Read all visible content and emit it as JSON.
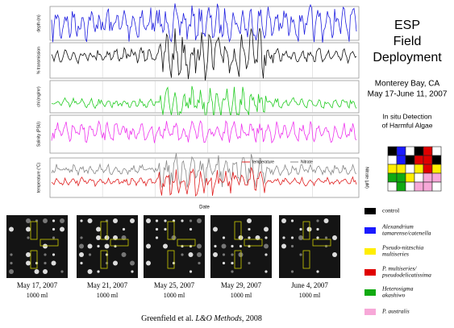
{
  "title": [
    "ESP",
    "Field",
    "Deployment"
  ],
  "location": "Monterey Bay, CA",
  "dates": "May 17-June 11, 2007",
  "subtitle": [
    "In situ Detection",
    "of Harmful Algae"
  ],
  "panels": [
    {
      "ylabel": "depth (m)",
      "color": "#2020e0"
    },
    {
      "ylabel": "% transmission",
      "color": "#111111"
    },
    {
      "ylabel": "chl (mg/m³)",
      "color": "#22cc22"
    },
    {
      "ylabel": "Salinity (PSU)",
      "color": "#ee33ee"
    },
    {
      "ylabel": "temperature (°C)",
      "y2label": "Nitrate (µM)",
      "color": "#e02020",
      "color2": "#888888",
      "legend": [
        "temperature",
        "Nitrate"
      ]
    }
  ],
  "xlabel": "Date",
  "samples": [
    {
      "date": "May 17, 2007",
      "volume": "1000 ml"
    },
    {
      "date": "May 21, 2007",
      "volume": "1000 ml"
    },
    {
      "date": "May 25, 2007",
      "volume": "1000 ml"
    },
    {
      "date": "May 29, 2007",
      "volume": "1000 ml"
    },
    {
      "date": "June 4, 2007",
      "volume": "1000 ml"
    }
  ],
  "legend": [
    {
      "lines": [
        "control"
      ],
      "italic": false,
      "color": "#000000"
    },
    {
      "lines": [
        "Alexandrium",
        "tamarense/catenella"
      ],
      "italic": true,
      "color": "#1a1aff"
    },
    {
      "lines": [
        "Pseudo-nitzschia",
        "multiseries"
      ],
      "italic": true,
      "color": "#ffee00"
    },
    {
      "lines": [
        "P. multiseries/",
        "pseudodelicatissima"
      ],
      "italic": true,
      "color": "#e00000"
    },
    {
      "lines": [
        "Heterosigma",
        "akashiwo"
      ],
      "italic": true,
      "color": "#11aa11"
    },
    {
      "lines": [
        "P. australis"
      ],
      "italic": true,
      "color": "#f7a8d8"
    }
  ],
  "citation": [
    "Greenfield et al. ",
    "L&O Methods",
    ", 2008"
  ]
}
